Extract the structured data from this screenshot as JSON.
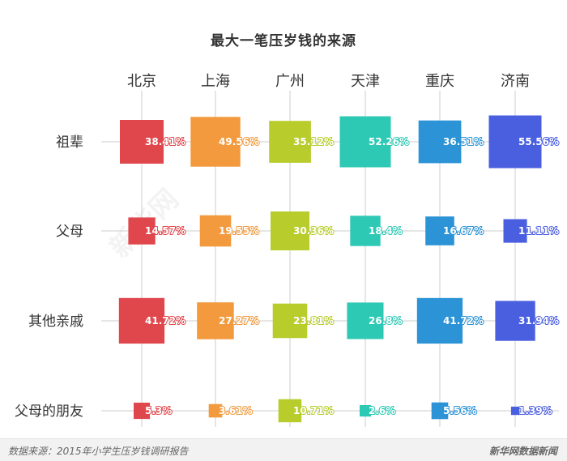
{
  "chart_data": {
    "type": "bubble-grid",
    "title": "最大一笔压岁钱的来源",
    "columns": [
      "北京",
      "上海",
      "广州",
      "天津",
      "重庆",
      "济南"
    ],
    "rows": [
      "祖辈",
      "父母",
      "其他亲戚",
      "父母的朋友"
    ],
    "values": [
      [
        38.41,
        49.56,
        35.12,
        52.26,
        36.51,
        55.56
      ],
      [
        14.57,
        19.55,
        30.36,
        18.4,
        16.67,
        11.11
      ],
      [
        41.72,
        27.27,
        23.81,
        26.8,
        41.72,
        31.94
      ],
      [
        5.3,
        3.61,
        10.71,
        2.6,
        5.56,
        1.39
      ]
    ],
    "labels": [
      [
        "38.41%",
        "49.56%",
        "35.12%",
        "52.26%",
        "36.51%",
        "55.56%"
      ],
      [
        "14.57%",
        "19.55%",
        "30.36%",
        "18.4%",
        "16.67%",
        "11.11%"
      ],
      [
        "41.72%",
        "27.27%",
        "23.81%",
        "26.8%",
        "41.72%",
        "31.94%"
      ],
      [
        "5.3%",
        "3.61%",
        "10.71%",
        "2.6%",
        "5.56%",
        "1.39%"
      ]
    ],
    "colors": [
      "#e0474c",
      "#f29a3d",
      "#b8cc2c",
      "#2ec9b4",
      "#2b93d6",
      "#4a5ee0"
    ],
    "grid": true
  },
  "watermark": "新华网",
  "footer": {
    "source": "数据来源：2015年小学生压岁钱调研报告",
    "brand": "新华网数据新闻"
  }
}
